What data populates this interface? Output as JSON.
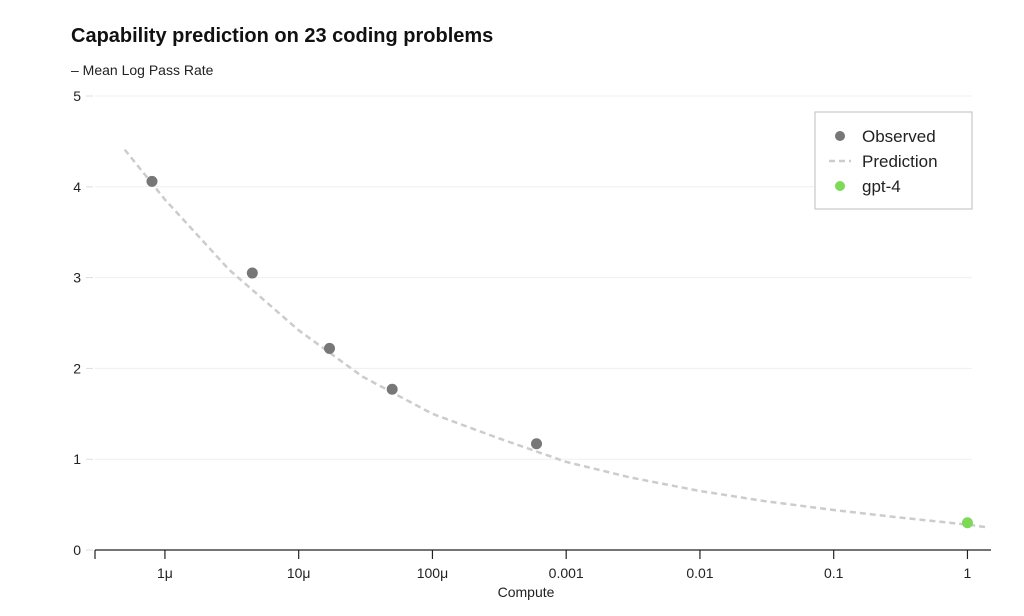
{
  "chart_data": {
    "type": "scatter",
    "title": "Capability prediction on 23 coding problems",
    "ylabel": "– Mean Log Pass Rate",
    "xlabel": "Compute",
    "x_scale": "log",
    "xlim": [
      3e-07,
      1.5
    ],
    "ylim": [
      0,
      5
    ],
    "x_ticks": [
      {
        "value": 1e-06,
        "label": "1μ"
      },
      {
        "value": 1e-05,
        "label": "10μ"
      },
      {
        "value": 0.0001,
        "label": "100μ"
      },
      {
        "value": 0.001,
        "label": "0.001"
      },
      {
        "value": 0.01,
        "label": "0.01"
      },
      {
        "value": 0.1,
        "label": "0.1"
      },
      {
        "value": 1,
        "label": "1"
      }
    ],
    "y_ticks": [
      {
        "value": 0,
        "label": "0"
      },
      {
        "value": 1,
        "label": "1"
      },
      {
        "value": 2,
        "label": "2"
      },
      {
        "value": 3,
        "label": "3"
      },
      {
        "value": 4,
        "label": "4"
      },
      {
        "value": 5,
        "label": "5"
      }
    ],
    "grid": "horizontal",
    "legend_position": "top-right",
    "legend": [
      {
        "label": "Observed",
        "marker": "dot",
        "color": "#777777"
      },
      {
        "label": "Prediction",
        "marker": "dash",
        "color": "#cccccc"
      },
      {
        "label": "gpt-4",
        "marker": "dot",
        "color": "#7ed957"
      }
    ],
    "series": [
      {
        "name": "Observed",
        "kind": "points",
        "color": "#777777",
        "points": [
          {
            "x": 8e-07,
            "y": 4.06
          },
          {
            "x": 4.5e-06,
            "y": 3.05
          },
          {
            "x": 1.7e-05,
            "y": 2.22
          },
          {
            "x": 5e-05,
            "y": 1.77
          },
          {
            "x": 0.0006,
            "y": 1.17
          }
        ]
      },
      {
        "name": "Prediction",
        "kind": "dashed-line",
        "color": "#cccccc",
        "points": [
          {
            "x": 5e-07,
            "y": 4.41
          },
          {
            "x": 1e-06,
            "y": 3.86
          },
          {
            "x": 3e-06,
            "y": 3.09
          },
          {
            "x": 1e-05,
            "y": 2.42
          },
          {
            "x": 3e-05,
            "y": 1.91
          },
          {
            "x": 0.0001,
            "y": 1.5
          },
          {
            "x": 0.0003,
            "y": 1.24
          },
          {
            "x": 0.001,
            "y": 0.97
          },
          {
            "x": 0.003,
            "y": 0.8
          },
          {
            "x": 0.01,
            "y": 0.65
          },
          {
            "x": 0.03,
            "y": 0.54
          },
          {
            "x": 0.1,
            "y": 0.44
          },
          {
            "x": 0.3,
            "y": 0.36
          },
          {
            "x": 1,
            "y": 0.28
          },
          {
            "x": 1.4,
            "y": 0.25
          }
        ]
      },
      {
        "name": "gpt-4",
        "kind": "points",
        "color": "#7ed957",
        "points": [
          {
            "x": 1,
            "y": 0.3
          }
        ]
      }
    ]
  }
}
